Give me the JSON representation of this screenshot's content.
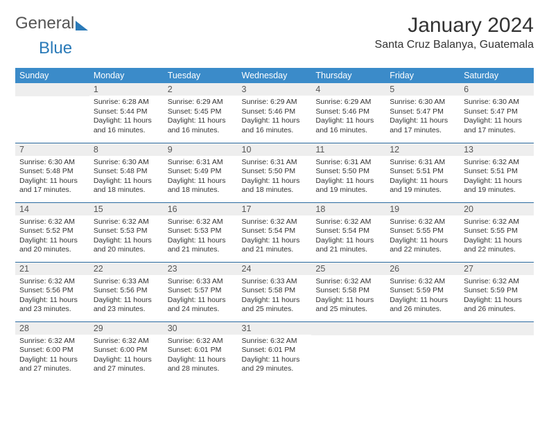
{
  "logo": {
    "word1": "General",
    "word2": "Blue"
  },
  "title": "January 2024",
  "location": "Santa Cruz Balanya, Guatemala",
  "colors": {
    "header_bg": "#3b8bc9",
    "header_text": "#ffffff",
    "daynum_bg": "#eeeeee",
    "row_border": "#2a6aa0",
    "text": "#333333"
  },
  "weekdays": [
    "Sunday",
    "Monday",
    "Tuesday",
    "Wednesday",
    "Thursday",
    "Friday",
    "Saturday"
  ],
  "weeks": [
    [
      {
        "n": "",
        "sunrise": "",
        "sunset": "",
        "daylight": ""
      },
      {
        "n": "1",
        "sunrise": "6:28 AM",
        "sunset": "5:44 PM",
        "daylight": "11 hours and 16 minutes."
      },
      {
        "n": "2",
        "sunrise": "6:29 AM",
        "sunset": "5:45 PM",
        "daylight": "11 hours and 16 minutes."
      },
      {
        "n": "3",
        "sunrise": "6:29 AM",
        "sunset": "5:46 PM",
        "daylight": "11 hours and 16 minutes."
      },
      {
        "n": "4",
        "sunrise": "6:29 AM",
        "sunset": "5:46 PM",
        "daylight": "11 hours and 16 minutes."
      },
      {
        "n": "5",
        "sunrise": "6:30 AM",
        "sunset": "5:47 PM",
        "daylight": "11 hours and 17 minutes."
      },
      {
        "n": "6",
        "sunrise": "6:30 AM",
        "sunset": "5:47 PM",
        "daylight": "11 hours and 17 minutes."
      }
    ],
    [
      {
        "n": "7",
        "sunrise": "6:30 AM",
        "sunset": "5:48 PM",
        "daylight": "11 hours and 17 minutes."
      },
      {
        "n": "8",
        "sunrise": "6:30 AM",
        "sunset": "5:48 PM",
        "daylight": "11 hours and 18 minutes."
      },
      {
        "n": "9",
        "sunrise": "6:31 AM",
        "sunset": "5:49 PM",
        "daylight": "11 hours and 18 minutes."
      },
      {
        "n": "10",
        "sunrise": "6:31 AM",
        "sunset": "5:50 PM",
        "daylight": "11 hours and 18 minutes."
      },
      {
        "n": "11",
        "sunrise": "6:31 AM",
        "sunset": "5:50 PM",
        "daylight": "11 hours and 19 minutes."
      },
      {
        "n": "12",
        "sunrise": "6:31 AM",
        "sunset": "5:51 PM",
        "daylight": "11 hours and 19 minutes."
      },
      {
        "n": "13",
        "sunrise": "6:32 AM",
        "sunset": "5:51 PM",
        "daylight": "11 hours and 19 minutes."
      }
    ],
    [
      {
        "n": "14",
        "sunrise": "6:32 AM",
        "sunset": "5:52 PM",
        "daylight": "11 hours and 20 minutes."
      },
      {
        "n": "15",
        "sunrise": "6:32 AM",
        "sunset": "5:53 PM",
        "daylight": "11 hours and 20 minutes."
      },
      {
        "n": "16",
        "sunrise": "6:32 AM",
        "sunset": "5:53 PM",
        "daylight": "11 hours and 21 minutes."
      },
      {
        "n": "17",
        "sunrise": "6:32 AM",
        "sunset": "5:54 PM",
        "daylight": "11 hours and 21 minutes."
      },
      {
        "n": "18",
        "sunrise": "6:32 AM",
        "sunset": "5:54 PM",
        "daylight": "11 hours and 21 minutes."
      },
      {
        "n": "19",
        "sunrise": "6:32 AM",
        "sunset": "5:55 PM",
        "daylight": "11 hours and 22 minutes."
      },
      {
        "n": "20",
        "sunrise": "6:32 AM",
        "sunset": "5:55 PM",
        "daylight": "11 hours and 22 minutes."
      }
    ],
    [
      {
        "n": "21",
        "sunrise": "6:32 AM",
        "sunset": "5:56 PM",
        "daylight": "11 hours and 23 minutes."
      },
      {
        "n": "22",
        "sunrise": "6:33 AM",
        "sunset": "5:56 PM",
        "daylight": "11 hours and 23 minutes."
      },
      {
        "n": "23",
        "sunrise": "6:33 AM",
        "sunset": "5:57 PM",
        "daylight": "11 hours and 24 minutes."
      },
      {
        "n": "24",
        "sunrise": "6:33 AM",
        "sunset": "5:58 PM",
        "daylight": "11 hours and 25 minutes."
      },
      {
        "n": "25",
        "sunrise": "6:32 AM",
        "sunset": "5:58 PM",
        "daylight": "11 hours and 25 minutes."
      },
      {
        "n": "26",
        "sunrise": "6:32 AM",
        "sunset": "5:59 PM",
        "daylight": "11 hours and 26 minutes."
      },
      {
        "n": "27",
        "sunrise": "6:32 AM",
        "sunset": "5:59 PM",
        "daylight": "11 hours and 26 minutes."
      }
    ],
    [
      {
        "n": "28",
        "sunrise": "6:32 AM",
        "sunset": "6:00 PM",
        "daylight": "11 hours and 27 minutes."
      },
      {
        "n": "29",
        "sunrise": "6:32 AM",
        "sunset": "6:00 PM",
        "daylight": "11 hours and 27 minutes."
      },
      {
        "n": "30",
        "sunrise": "6:32 AM",
        "sunset": "6:01 PM",
        "daylight": "11 hours and 28 minutes."
      },
      {
        "n": "31",
        "sunrise": "6:32 AM",
        "sunset": "6:01 PM",
        "daylight": "11 hours and 29 minutes."
      },
      {
        "n": "",
        "sunrise": "",
        "sunset": "",
        "daylight": ""
      },
      {
        "n": "",
        "sunrise": "",
        "sunset": "",
        "daylight": ""
      },
      {
        "n": "",
        "sunrise": "",
        "sunset": "",
        "daylight": ""
      }
    ]
  ]
}
